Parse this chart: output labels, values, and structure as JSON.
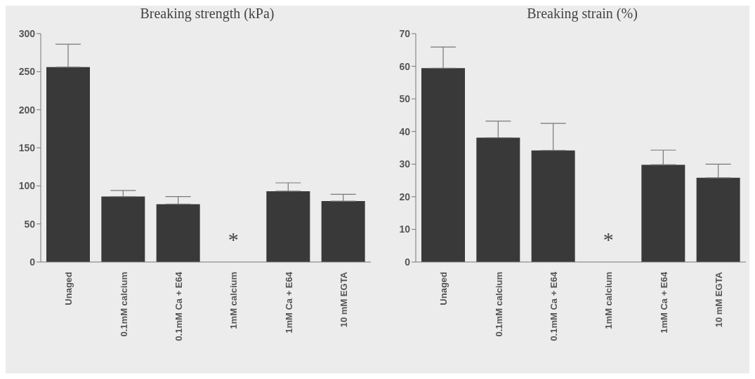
{
  "chart_data": [
    {
      "type": "bar",
      "title": "Breaking strength (kPa)",
      "categories": [
        "Unaged",
        "0.1mM calcium",
        "0.1mM Ca + E64",
        "1mM calcium",
        "1mM Ca + E64",
        "10 mM EGTA"
      ],
      "values": [
        256,
        86,
        76,
        null,
        93,
        80
      ],
      "errors": [
        [
          256,
          286
        ],
        [
          86,
          94
        ],
        [
          76,
          86
        ],
        null,
        [
          93,
          104
        ],
        [
          80,
          89
        ]
      ],
      "color": "#393939",
      "ylim": [
        0,
        300
      ],
      "yticks": [
        0,
        50,
        100,
        150,
        200,
        250,
        300
      ],
      "grid": false,
      "legend": false,
      "annotations": [
        "*"
      ]
    },
    {
      "type": "bar",
      "title": "Breaking strain (%)",
      "categories": [
        "Unaged",
        "0.1mM calcium",
        "0.1mM Ca + E64",
        "1mM calcium",
        "1mM Ca + E64",
        "10 mM EGTA"
      ],
      "values": [
        59.4,
        38.1,
        34.2,
        null,
        29.8,
        25.8
      ],
      "errors": [
        [
          59.4,
          65.9
        ],
        [
          38.1,
          43.2
        ],
        [
          34.2,
          42.5
        ],
        null,
        [
          29.8,
          34.3
        ],
        [
          25.8,
          30
        ]
      ],
      "color": "#393939",
      "ylim": [
        0,
        70
      ],
      "yticks": [
        0,
        10,
        20,
        30,
        40,
        50,
        60,
        70
      ],
      "grid": false,
      "legend": false,
      "annotations": [
        "*"
      ]
    }
  ]
}
